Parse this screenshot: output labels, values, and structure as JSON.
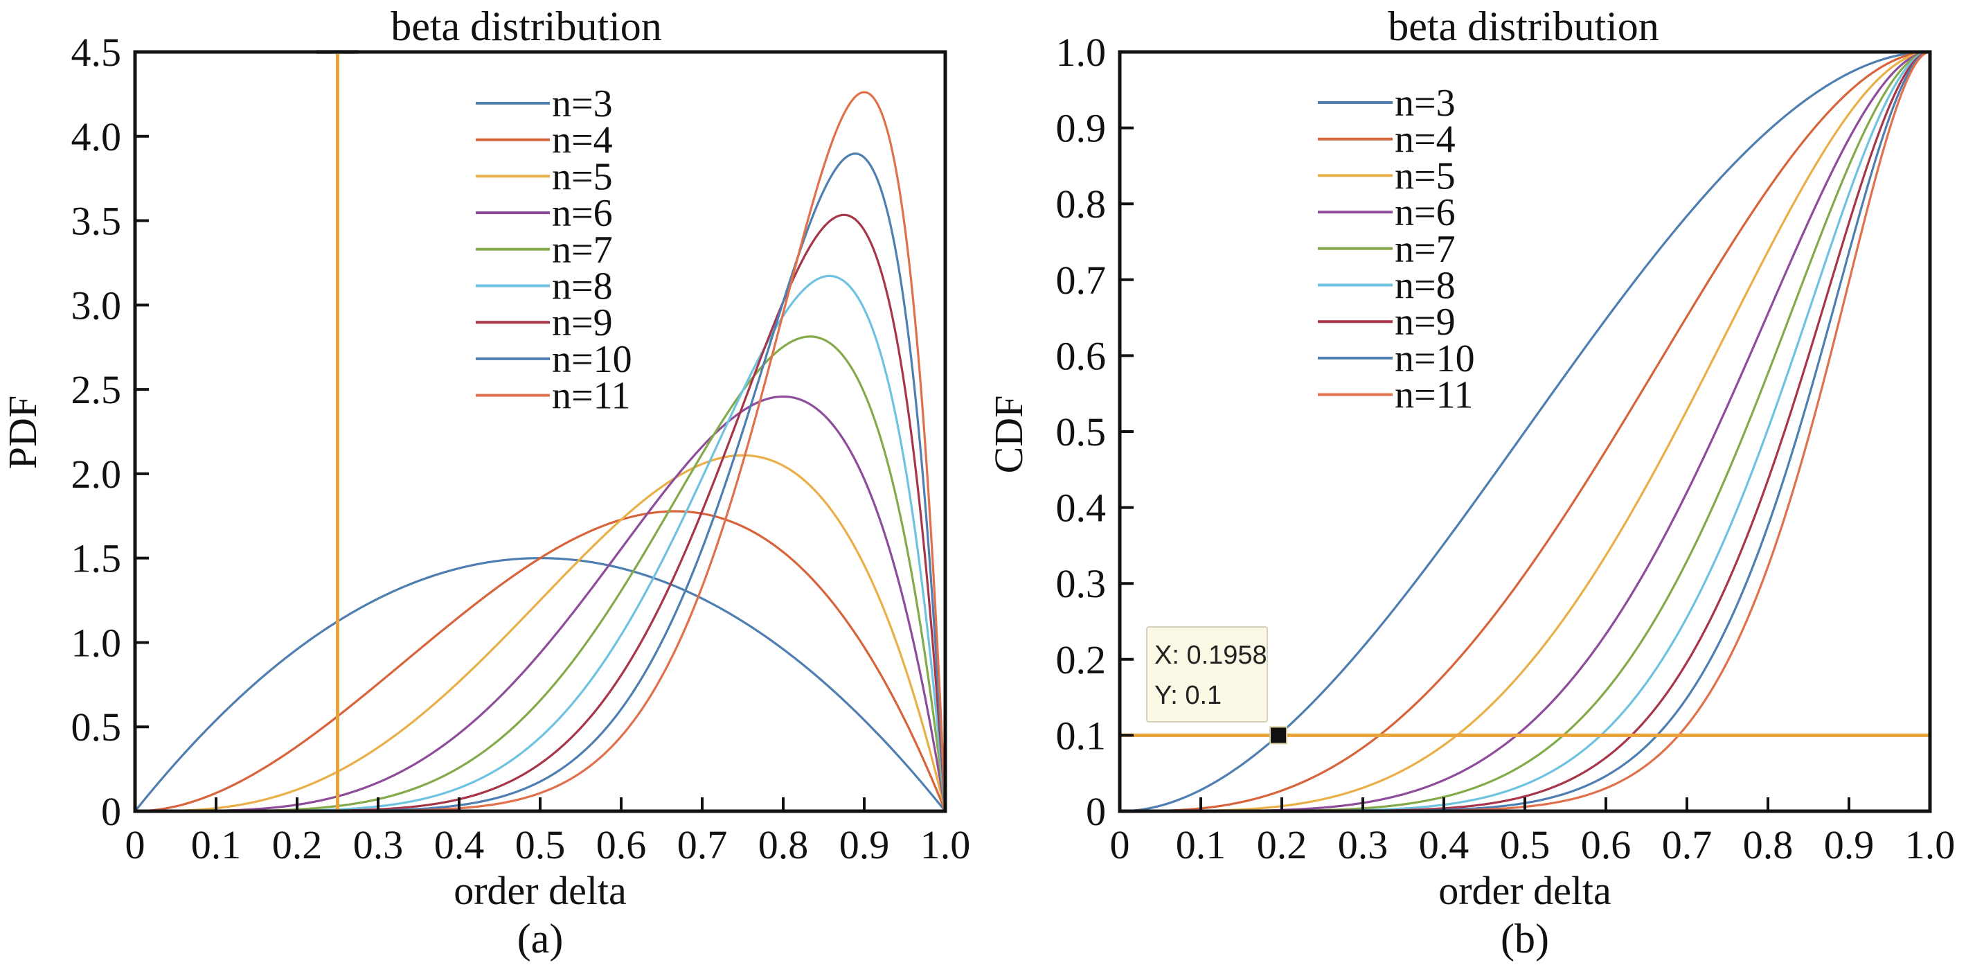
{
  "chart_data": [
    {
      "id": "pdf",
      "type": "line",
      "title": "beta distribution",
      "xlabel": "order delta",
      "ylabel": "PDF",
      "caption": "(a)",
      "xlim": [
        0,
        1.0
      ],
      "ylim": [
        0,
        4.5
      ],
      "grid": false,
      "legend_position": "top-center",
      "x_ticks": [
        0,
        0.1,
        0.2,
        0.3,
        0.4,
        0.5,
        0.6,
        0.7,
        0.8,
        0.9,
        1.0
      ],
      "x_tick_labels": [
        "0",
        "0.1",
        "0.2",
        "0.3",
        "0.4",
        "0.5",
        "0.6",
        "0.7",
        "0.8",
        "0.9",
        "1.0"
      ],
      "y_ticks": [
        0,
        0.5,
        1.0,
        1.5,
        2.0,
        2.5,
        3.0,
        3.5,
        4.0,
        4.5
      ],
      "y_tick_labels": [
        "0",
        "0.5",
        "1.0",
        "1.5",
        "2.0",
        "2.5",
        "3.0",
        "3.5",
        "4.0",
        "4.5"
      ],
      "function": "pdf",
      "x": [
        0,
        0.1,
        0.2,
        0.3,
        0.4,
        0.5,
        0.6,
        0.7,
        0.8,
        0.9,
        1.0
      ],
      "series": [
        {
          "name": "n=3",
          "color": "#4f7fb0",
          "beta_params": [
            2,
            2
          ],
          "values": [
            0,
            0.54,
            0.96,
            1.26,
            1.44,
            1.5,
            1.44,
            1.26,
            0.96,
            0.54,
            0
          ]
        },
        {
          "name": "n=4",
          "color": "#d8643c",
          "beta_params": [
            3,
            2
          ],
          "values": [
            0,
            0.108,
            0.384,
            0.756,
            1.152,
            1.5,
            1.728,
            1.764,
            1.536,
            0.972,
            0
          ]
        },
        {
          "name": "n=5",
          "color": "#e9b04a",
          "beta_params": [
            4,
            2
          ],
          "values": [
            0,
            0.018,
            0.128,
            0.378,
            0.768,
            1.25,
            1.728,
            2.058,
            2.048,
            1.458,
            0
          ]
        },
        {
          "name": "n=6",
          "color": "#8e4d9a",
          "beta_params": [
            5,
            2
          ],
          "values": [
            0,
            0.0027,
            0.0384,
            0.1701,
            0.4608,
            0.9375,
            1.5552,
            2.1609,
            2.4576,
            1.9683,
            0
          ]
        },
        {
          "name": "n=7",
          "color": "#85aa4c",
          "beta_params": [
            6,
            2
          ],
          "values": [
            0,
            0.0004,
            0.0108,
            0.0714,
            0.2581,
            0.6563,
            1.3064,
            2.1177,
            2.7525,
            2.4801,
            0
          ]
        },
        {
          "name": "n=8",
          "color": "#6fc3e0",
          "beta_params": [
            7,
            2
          ],
          "values": [
            0,
            0.0001,
            0.0029,
            0.0286,
            0.1376,
            0.4375,
            1.0451,
            1.9765,
            2.936,
            2.9761,
            0
          ]
        },
        {
          "name": "n=9",
          "color": "#a8364a",
          "beta_params": [
            8,
            2
          ],
          "values": [
            0,
            0.0,
            0.0007,
            0.011,
            0.0708,
            0.2813,
            0.8062,
            1.7789,
            3.0199,
            3.4437,
            0
          ]
        },
        {
          "name": "n=10",
          "color": "#4f7fb0",
          "beta_params": [
            9,
            2
          ],
          "values": [
            0,
            0.0,
            0.0002,
            0.0041,
            0.0354,
            0.1758,
            0.6047,
            1.5565,
            3.0199,
            3.8742,
            0
          ]
        },
        {
          "name": "n=11",
          "color": "#e0714d",
          "beta_params": [
            10,
            2
          ],
          "values": [
            0,
            0.0,
            0.0001,
            0.0015,
            0.0173,
            0.1074,
            0.4434,
            1.3317,
            2.9528,
            4.2616,
            0
          ]
        }
      ],
      "annotations": [
        {
          "type": "vertical-line",
          "x": 0.25,
          "color": "#e8a33d"
        }
      ]
    },
    {
      "id": "cdf",
      "type": "line",
      "title": "beta distribution",
      "xlabel": "order delta",
      "ylabel": "CDF",
      "caption": "(b)",
      "xlim": [
        0,
        1.0
      ],
      "ylim": [
        0,
        1.0
      ],
      "grid": false,
      "legend_position": "top-left",
      "x_ticks": [
        0,
        0.1,
        0.2,
        0.3,
        0.4,
        0.5,
        0.6,
        0.7,
        0.8,
        0.9,
        1.0
      ],
      "x_tick_labels": [
        "0",
        "0.1",
        "0.2",
        "0.3",
        "0.4",
        "0.5",
        "0.6",
        "0.7",
        "0.8",
        "0.9",
        "1.0"
      ],
      "y_ticks": [
        0,
        0.1,
        0.2,
        0.3,
        0.4,
        0.5,
        0.6,
        0.7,
        0.8,
        0.9,
        1.0
      ],
      "y_tick_labels": [
        "0",
        "0.1",
        "0.2",
        "0.3",
        "0.4",
        "0.5",
        "0.6",
        "0.7",
        "0.8",
        "0.9",
        "1.0"
      ],
      "function": "cdf",
      "x": [
        0,
        0.1,
        0.2,
        0.3,
        0.4,
        0.5,
        0.6,
        0.7,
        0.8,
        0.9,
        1.0
      ],
      "series": [
        {
          "name": "n=3",
          "color": "#4f7fb0",
          "beta_params": [
            2,
            2
          ],
          "values": [
            0,
            0.028,
            0.104,
            0.216,
            0.352,
            0.5,
            0.648,
            0.784,
            0.896,
            0.972,
            1
          ]
        },
        {
          "name": "n=4",
          "color": "#d8643c",
          "beta_params": [
            3,
            2
          ],
          "values": [
            0,
            0.0037,
            0.0272,
            0.0837,
            0.1792,
            0.3125,
            0.4752,
            0.6517,
            0.8192,
            0.9477,
            1
          ]
        },
        {
          "name": "n=5",
          "color": "#e9b04a",
          "beta_params": [
            4,
            2
          ],
          "values": [
            0,
            0.0005,
            0.0067,
            0.0308,
            0.087,
            0.1875,
            0.337,
            0.5282,
            0.7373,
            0.9185,
            1
          ]
        },
        {
          "name": "n=6",
          "color": "#8e4d9a",
          "beta_params": [
            5,
            2
          ],
          "values": [
            0,
            0.0001,
            0.0016,
            0.0109,
            0.041,
            0.1094,
            0.2333,
            0.4202,
            0.6554,
            0.8857,
            1
          ]
        },
        {
          "name": "n=7",
          "color": "#85aa4c",
          "beta_params": [
            6,
            2
          ],
          "values": [
            0,
            0.0,
            0.0004,
            0.0038,
            0.0188,
            0.0625,
            0.1586,
            0.3294,
            0.5767,
            0.8503,
            1
          ]
        },
        {
          "name": "n=8",
          "color": "#6fc3e0",
          "beta_params": [
            7,
            2
          ],
          "values": [
            0,
            0.0,
            0.0001,
            0.0013,
            0.0085,
            0.0352,
            0.1064,
            0.2553,
            0.5033,
            0.8126,
            1
          ]
        },
        {
          "name": "n=9",
          "color": "#a8364a",
          "beta_params": [
            8,
            2
          ],
          "values": [
            0,
            0.0,
            0.0,
            0.0004,
            0.0038,
            0.0195,
            0.0705,
            0.196,
            0.4362,
            0.7741,
            1
          ]
        },
        {
          "name": "n=10",
          "color": "#4f7fb0",
          "beta_params": [
            9,
            2
          ],
          "values": [
            0,
            0.0,
            0.0,
            0.0001,
            0.0017,
            0.0107,
            0.0464,
            0.1493,
            0.3758,
            0.7334,
            1
          ]
        },
        {
          "name": "n=11",
          "color": "#e0714d",
          "beta_params": [
            10,
            2
          ],
          "values": [
            0,
            0.0,
            0.0,
            0.0001,
            0.0007,
            0.0059,
            0.0302,
            0.113,
            0.3222,
            0.6956,
            1
          ]
        }
      ],
      "annotations": [
        {
          "type": "horizontal-line",
          "y": 0.1,
          "color": "#e8a33d"
        },
        {
          "type": "datatip",
          "x": 0.1958,
          "y": 0.1,
          "lines": [
            "X: 0.1958",
            "Y: 0.1"
          ]
        }
      ]
    }
  ]
}
